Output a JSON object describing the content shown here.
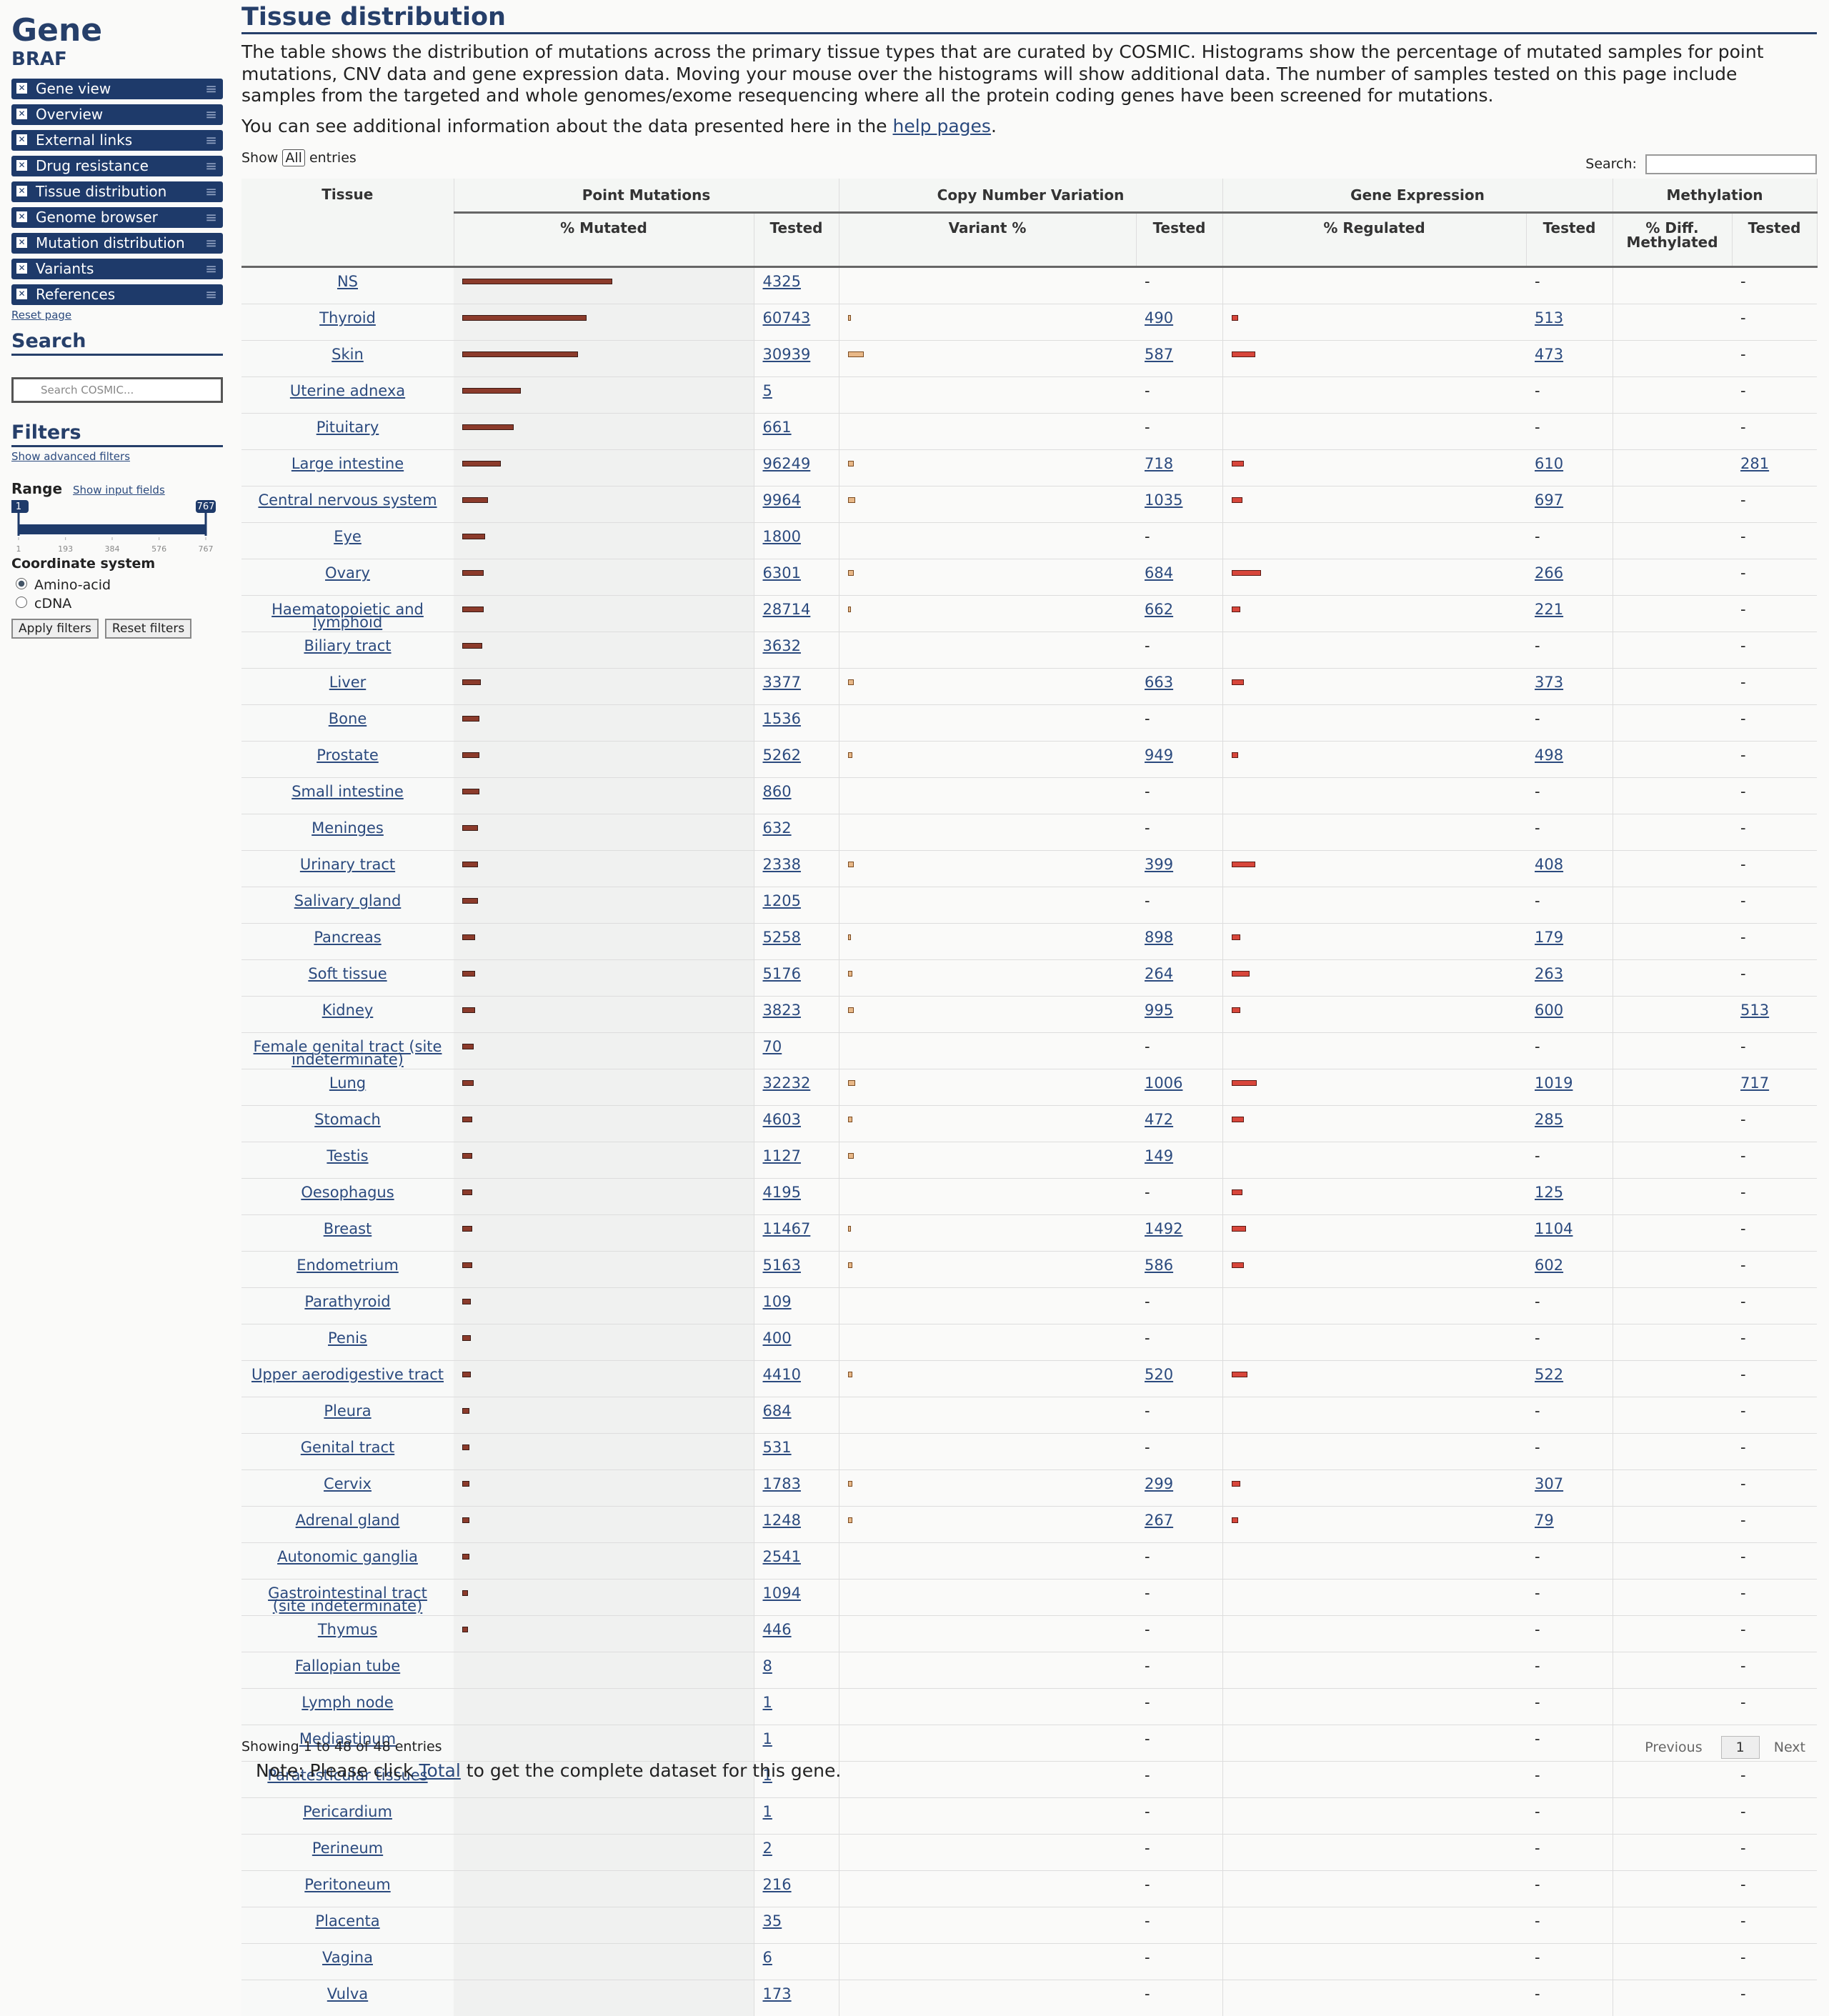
{
  "sidebar": {
    "title": "Gene",
    "gene": "BRAF",
    "menu": [
      "Gene view",
      "Overview",
      "External links",
      "Drug resistance",
      "Tissue distribution",
      "Genome browser",
      "Mutation distribution",
      "Variants",
      "References"
    ],
    "reset": "Reset page",
    "search_title": "Search",
    "search_placeholder": "Search COSMIC...",
    "filters_title": "Filters",
    "advanced": "Show advanced filters",
    "range_label": "Range",
    "show_inputs": "Show input fields",
    "range_min": 1,
    "range_max": 767,
    "range_ticks": [
      1,
      193,
      384,
      576,
      767
    ],
    "coord_title": "Coordinate system",
    "coord_options": [
      "Amino-acid",
      "cDNA"
    ],
    "apply": "Apply filters",
    "reset_filters": "Reset filters"
  },
  "main": {
    "title": "Tissue distribution",
    "intro": "The table shows the distribution of mutations across the primary tissue types that are curated by COSMIC. Histograms show the percentage of mutated samples for point mutations, CNV data and gene expression data. Moving your mouse over the histograms will show additional data. The number of samples tested on this page include samples from the targeted and whole genomes/exome resequencing where all the protein coding genes have been screened for mutations.",
    "help_prefix": "You can see additional information about the data presented here in the ",
    "help_link": "help pages",
    "help_suffix": ".",
    "show": "Show",
    "show_option": "All",
    "entries": "entries",
    "search": "Search:"
  },
  "table": {
    "groups": [
      "Point Mutations",
      "Copy Number Variation",
      "Gene Expression",
      "Methylation"
    ],
    "tissue_header": "Tissue",
    "columns": [
      "% Mutated",
      "Tested",
      "Variant %",
      "Tested",
      "% Regulated",
      "Tested",
      "% Diff. Methylated",
      "Tested"
    ],
    "rows": [
      {
        "tissue": "NS",
        "mutated_pct": 52,
        "tested": 4325,
        "cnv_pct": null,
        "cnv_tested": "-",
        "expr_pct": null,
        "expr_tested": "-",
        "meth_tested": "-"
      },
      {
        "tissue": "Thyroid",
        "mutated_pct": 43,
        "tested": 60743,
        "cnv_pct": 0.5,
        "cnv_tested": 490,
        "expr_pct": 3,
        "expr_tested": 513,
        "meth_tested": "-"
      },
      {
        "tissue": "Skin",
        "mutated_pct": 40,
        "tested": 30939,
        "cnv_pct": 5,
        "cnv_tested": 587,
        "expr_pct": 12,
        "expr_tested": 473,
        "meth_tested": "-"
      },
      {
        "tissue": "Uterine adnexa",
        "mutated_pct": 20,
        "tested": 5,
        "cnv_pct": null,
        "cnv_tested": "-",
        "expr_pct": null,
        "expr_tested": "-",
        "meth_tested": "-"
      },
      {
        "tissue": "Pituitary",
        "mutated_pct": 17.5,
        "tested": 661,
        "cnv_pct": null,
        "cnv_tested": "-",
        "expr_pct": null,
        "expr_tested": "-",
        "meth_tested": "-"
      },
      {
        "tissue": "Large intestine",
        "mutated_pct": 13,
        "tested": 96249,
        "cnv_pct": 1.5,
        "cnv_tested": 718,
        "expr_pct": 6,
        "expr_tested": 610,
        "meth_tested": 281
      },
      {
        "tissue": "Central nervous system",
        "mutated_pct": 8.5,
        "tested": 9964,
        "cnv_pct": 2,
        "cnv_tested": 1035,
        "expr_pct": 5,
        "expr_tested": 697,
        "meth_tested": "-"
      },
      {
        "tissue": "Eye",
        "mutated_pct": 7.5,
        "tested": 1800,
        "cnv_pct": null,
        "cnv_tested": "-",
        "expr_pct": null,
        "expr_tested": "-",
        "meth_tested": "-"
      },
      {
        "tissue": "Ovary",
        "mutated_pct": 7,
        "tested": 6301,
        "cnv_pct": 1.5,
        "cnv_tested": 684,
        "expr_pct": 15,
        "expr_tested": 266,
        "meth_tested": "-"
      },
      {
        "tissue": "Haematopoietic and lymphoid",
        "mutated_pct": 7,
        "tested": 28714,
        "cnv_pct": 0.5,
        "cnv_tested": 662,
        "expr_pct": 4,
        "expr_tested": 221,
        "meth_tested": "-"
      },
      {
        "tissue": "Biliary tract",
        "mutated_pct": 6.5,
        "tested": 3632,
        "cnv_pct": null,
        "cnv_tested": "-",
        "expr_pct": null,
        "expr_tested": "-",
        "meth_tested": "-"
      },
      {
        "tissue": "Liver",
        "mutated_pct": 6,
        "tested": 3377,
        "cnv_pct": 1.5,
        "cnv_tested": 663,
        "expr_pct": 6,
        "expr_tested": 373,
        "meth_tested": "-"
      },
      {
        "tissue": "Bone",
        "mutated_pct": 5.5,
        "tested": 1536,
        "cnv_pct": null,
        "cnv_tested": "-",
        "expr_pct": null,
        "expr_tested": "-",
        "meth_tested": "-"
      },
      {
        "tissue": "Prostate",
        "mutated_pct": 5.5,
        "tested": 5262,
        "cnv_pct": 1,
        "cnv_tested": 949,
        "expr_pct": 3,
        "expr_tested": 498,
        "meth_tested": "-"
      },
      {
        "tissue": "Small intestine",
        "mutated_pct": 5.5,
        "tested": 860,
        "cnv_pct": null,
        "cnv_tested": "-",
        "expr_pct": null,
        "expr_tested": "-",
        "meth_tested": "-"
      },
      {
        "tissue": "Meninges",
        "mutated_pct": 5,
        "tested": 632,
        "cnv_pct": null,
        "cnv_tested": "-",
        "expr_pct": null,
        "expr_tested": "-",
        "meth_tested": "-"
      },
      {
        "tissue": "Urinary tract",
        "mutated_pct": 5,
        "tested": 2338,
        "cnv_pct": 1.5,
        "cnv_tested": 399,
        "expr_pct": 12,
        "expr_tested": 408,
        "meth_tested": "-"
      },
      {
        "tissue": "Salivary gland",
        "mutated_pct": 5,
        "tested": 1205,
        "cnv_pct": null,
        "cnv_tested": "-",
        "expr_pct": null,
        "expr_tested": "-",
        "meth_tested": "-"
      },
      {
        "tissue": "Pancreas",
        "mutated_pct": 4,
        "tested": 5258,
        "cnv_pct": 0.5,
        "cnv_tested": 898,
        "expr_pct": 4,
        "expr_tested": 179,
        "meth_tested": "-"
      },
      {
        "tissue": "Soft tissue",
        "mutated_pct": 4,
        "tested": 5176,
        "cnv_pct": 1,
        "cnv_tested": 264,
        "expr_pct": 9,
        "expr_tested": 263,
        "meth_tested": "-"
      },
      {
        "tissue": "Kidney",
        "mutated_pct": 4,
        "tested": 3823,
        "cnv_pct": 1.5,
        "cnv_tested": 995,
        "expr_pct": 4,
        "expr_tested": 600,
        "meth_tested": 513
      },
      {
        "tissue": "Female genital tract (site indeterminate)",
        "mutated_pct": 3.5,
        "tested": 70,
        "cnv_pct": null,
        "cnv_tested": "-",
        "expr_pct": null,
        "expr_tested": "-",
        "meth_tested": "-"
      },
      {
        "tissue": "Lung",
        "mutated_pct": 3.5,
        "tested": 32232,
        "cnv_pct": 2,
        "cnv_tested": 1006,
        "expr_pct": 13,
        "expr_tested": 1019,
        "meth_tested": 717
      },
      {
        "tissue": "Stomach",
        "mutated_pct": 3,
        "tested": 4603,
        "cnv_pct": 1,
        "cnv_tested": 472,
        "expr_pct": 6,
        "expr_tested": 285,
        "meth_tested": "-"
      },
      {
        "tissue": "Testis",
        "mutated_pct": 3,
        "tested": 1127,
        "cnv_pct": 1.5,
        "cnv_tested": 149,
        "expr_pct": null,
        "expr_tested": "-",
        "meth_tested": "-"
      },
      {
        "tissue": "Oesophagus",
        "mutated_pct": 3,
        "tested": 4195,
        "cnv_pct": null,
        "cnv_tested": "-",
        "expr_pct": 5,
        "expr_tested": 125,
        "meth_tested": "-"
      },
      {
        "tissue": "Breast",
        "mutated_pct": 3,
        "tested": 11467,
        "cnv_pct": 0.5,
        "cnv_tested": 1492,
        "expr_pct": 7,
        "expr_tested": 1104,
        "meth_tested": "-"
      },
      {
        "tissue": "Endometrium",
        "mutated_pct": 3,
        "tested": 5163,
        "cnv_pct": 1,
        "cnv_tested": 586,
        "expr_pct": 6,
        "expr_tested": 602,
        "meth_tested": "-"
      },
      {
        "tissue": "Parathyroid",
        "mutated_pct": 2.5,
        "tested": 109,
        "cnv_pct": null,
        "cnv_tested": "-",
        "expr_pct": null,
        "expr_tested": "-",
        "meth_tested": "-"
      },
      {
        "tissue": "Penis",
        "mutated_pct": 2.5,
        "tested": 400,
        "cnv_pct": null,
        "cnv_tested": "-",
        "expr_pct": null,
        "expr_tested": "-",
        "meth_tested": "-"
      },
      {
        "tissue": "Upper aerodigestive tract",
        "mutated_pct": 2.5,
        "tested": 4410,
        "cnv_pct": 1,
        "cnv_tested": 520,
        "expr_pct": 8,
        "expr_tested": 522,
        "meth_tested": "-"
      },
      {
        "tissue": "Pleura",
        "mutated_pct": 2,
        "tested": 684,
        "cnv_pct": null,
        "cnv_tested": "-",
        "expr_pct": null,
        "expr_tested": "-",
        "meth_tested": "-"
      },
      {
        "tissue": "Genital tract",
        "mutated_pct": 2,
        "tested": 531,
        "cnv_pct": null,
        "cnv_tested": "-",
        "expr_pct": null,
        "expr_tested": "-",
        "meth_tested": "-"
      },
      {
        "tissue": "Cervix",
        "mutated_pct": 2,
        "tested": 1783,
        "cnv_pct": 1,
        "cnv_tested": 299,
        "expr_pct": 4,
        "expr_tested": 307,
        "meth_tested": "-"
      },
      {
        "tissue": "Adrenal gland",
        "mutated_pct": 2,
        "tested": 1248,
        "cnv_pct": 1,
        "cnv_tested": 267,
        "expr_pct": 3,
        "expr_tested": 79,
        "meth_tested": "-"
      },
      {
        "tissue": "Autonomic ganglia",
        "mutated_pct": 2,
        "tested": 2541,
        "cnv_pct": null,
        "cnv_tested": "-",
        "expr_pct": null,
        "expr_tested": "-",
        "meth_tested": "-"
      },
      {
        "tissue": "Gastrointestinal tract (site indeterminate)",
        "mutated_pct": 1.5,
        "tested": 1094,
        "cnv_pct": null,
        "cnv_tested": "-",
        "expr_pct": null,
        "expr_tested": "-",
        "meth_tested": "-"
      },
      {
        "tissue": "Thymus",
        "mutated_pct": 1.5,
        "tested": 446,
        "cnv_pct": null,
        "cnv_tested": "-",
        "expr_pct": null,
        "expr_tested": "-",
        "meth_tested": "-"
      },
      {
        "tissue": "Fallopian tube",
        "mutated_pct": 0,
        "tested": 8,
        "cnv_pct": null,
        "cnv_tested": "-",
        "expr_pct": null,
        "expr_tested": "-",
        "meth_tested": "-"
      },
      {
        "tissue": "Lymph node",
        "mutated_pct": 0,
        "tested": 1,
        "cnv_pct": null,
        "cnv_tested": "-",
        "expr_pct": null,
        "expr_tested": "-",
        "meth_tested": "-"
      },
      {
        "tissue": "Mediastinum",
        "mutated_pct": 0,
        "tested": 1,
        "cnv_pct": null,
        "cnv_tested": "-",
        "expr_pct": null,
        "expr_tested": "-",
        "meth_tested": "-"
      },
      {
        "tissue": "Paratesticular tissues",
        "mutated_pct": 0,
        "tested": 1,
        "cnv_pct": null,
        "cnv_tested": "-",
        "expr_pct": null,
        "expr_tested": "-",
        "meth_tested": "-"
      },
      {
        "tissue": "Pericardium",
        "mutated_pct": 0,
        "tested": 1,
        "cnv_pct": null,
        "cnv_tested": "-",
        "expr_pct": null,
        "expr_tested": "-",
        "meth_tested": "-"
      },
      {
        "tissue": "Perineum",
        "mutated_pct": 0,
        "tested": 2,
        "cnv_pct": null,
        "cnv_tested": "-",
        "expr_pct": null,
        "expr_tested": "-",
        "meth_tested": "-"
      },
      {
        "tissue": "Peritoneum",
        "mutated_pct": 0,
        "tested": 216,
        "cnv_pct": null,
        "cnv_tested": "-",
        "expr_pct": null,
        "expr_tested": "-",
        "meth_tested": "-"
      },
      {
        "tissue": "Placenta",
        "mutated_pct": 0,
        "tested": 35,
        "cnv_pct": null,
        "cnv_tested": "-",
        "expr_pct": null,
        "expr_tested": "-",
        "meth_tested": "-"
      },
      {
        "tissue": "Vagina",
        "mutated_pct": 0,
        "tested": 6,
        "cnv_pct": null,
        "cnv_tested": "-",
        "expr_pct": null,
        "expr_tested": "-",
        "meth_tested": "-"
      },
      {
        "tissue": "Vulva",
        "mutated_pct": 0,
        "tested": 173,
        "cnv_pct": null,
        "cnv_tested": "-",
        "expr_pct": null,
        "expr_tested": "-",
        "meth_tested": "-"
      }
    ]
  },
  "footer": {
    "showing": "Showing 1 to 48 of 48 entries",
    "previous": "Previous",
    "page": "1",
    "next": "Next",
    "note_prefix": "Note: Please click ",
    "note_link": "Total",
    "note_suffix": " to get the complete dataset for this gene."
  }
}
